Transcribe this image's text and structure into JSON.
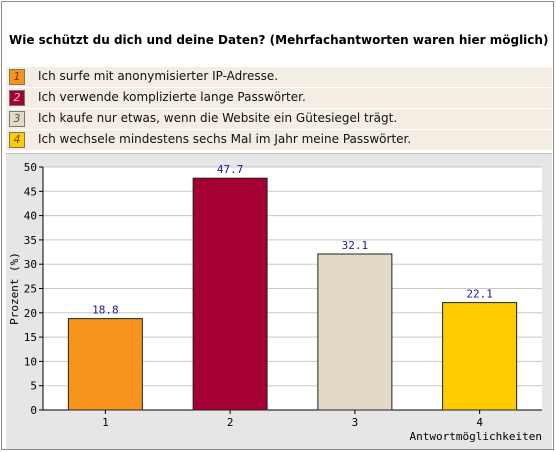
{
  "title": "Wie schützt du dich und deine Daten? (Mehrfachantworten waren hier möglich)",
  "legend": [
    {
      "num": "1",
      "text": "Ich surfe mit anonymisierter IP-Adresse.",
      "color": "#f7941d",
      "numColor": "#6a3c00"
    },
    {
      "num": "2",
      "text": "Ich verwende komplizierte lange Passwörter.",
      "color": "#a50034",
      "numColor": "#f0c0d0"
    },
    {
      "num": "3",
      "text": "Ich kaufe nur etwas, wenn die Website ein Gütesiegel trägt.",
      "color": "#e3d9c4",
      "numColor": "#555555"
    },
    {
      "num": "4",
      "text": "Ich wechsele mindestens sechs Mal im Jahr meine Passwörter.",
      "color": "#ffcc00",
      "numColor": "#6a5000"
    }
  ],
  "chart_data": {
    "type": "bar",
    "categories": [
      "1",
      "2",
      "3",
      "4"
    ],
    "values": [
      18.8,
      47.7,
      32.1,
      22.1
    ],
    "value_labels": [
      "18.8",
      "47.7",
      "32.1",
      "22.1"
    ],
    "colors": [
      "#f7941d",
      "#a50034",
      "#e3d9c4",
      "#ffcc00"
    ],
    "ylabel": "Prozent (%)",
    "xlabel": "Antwortmöglichkeiten",
    "ylim": [
      0,
      50
    ],
    "yticks": [
      "0",
      "5",
      "10",
      "15",
      "20",
      "25",
      "30",
      "35",
      "40",
      "45",
      "50"
    ],
    "grid": true,
    "data_label_color": "#1a1a8c"
  }
}
